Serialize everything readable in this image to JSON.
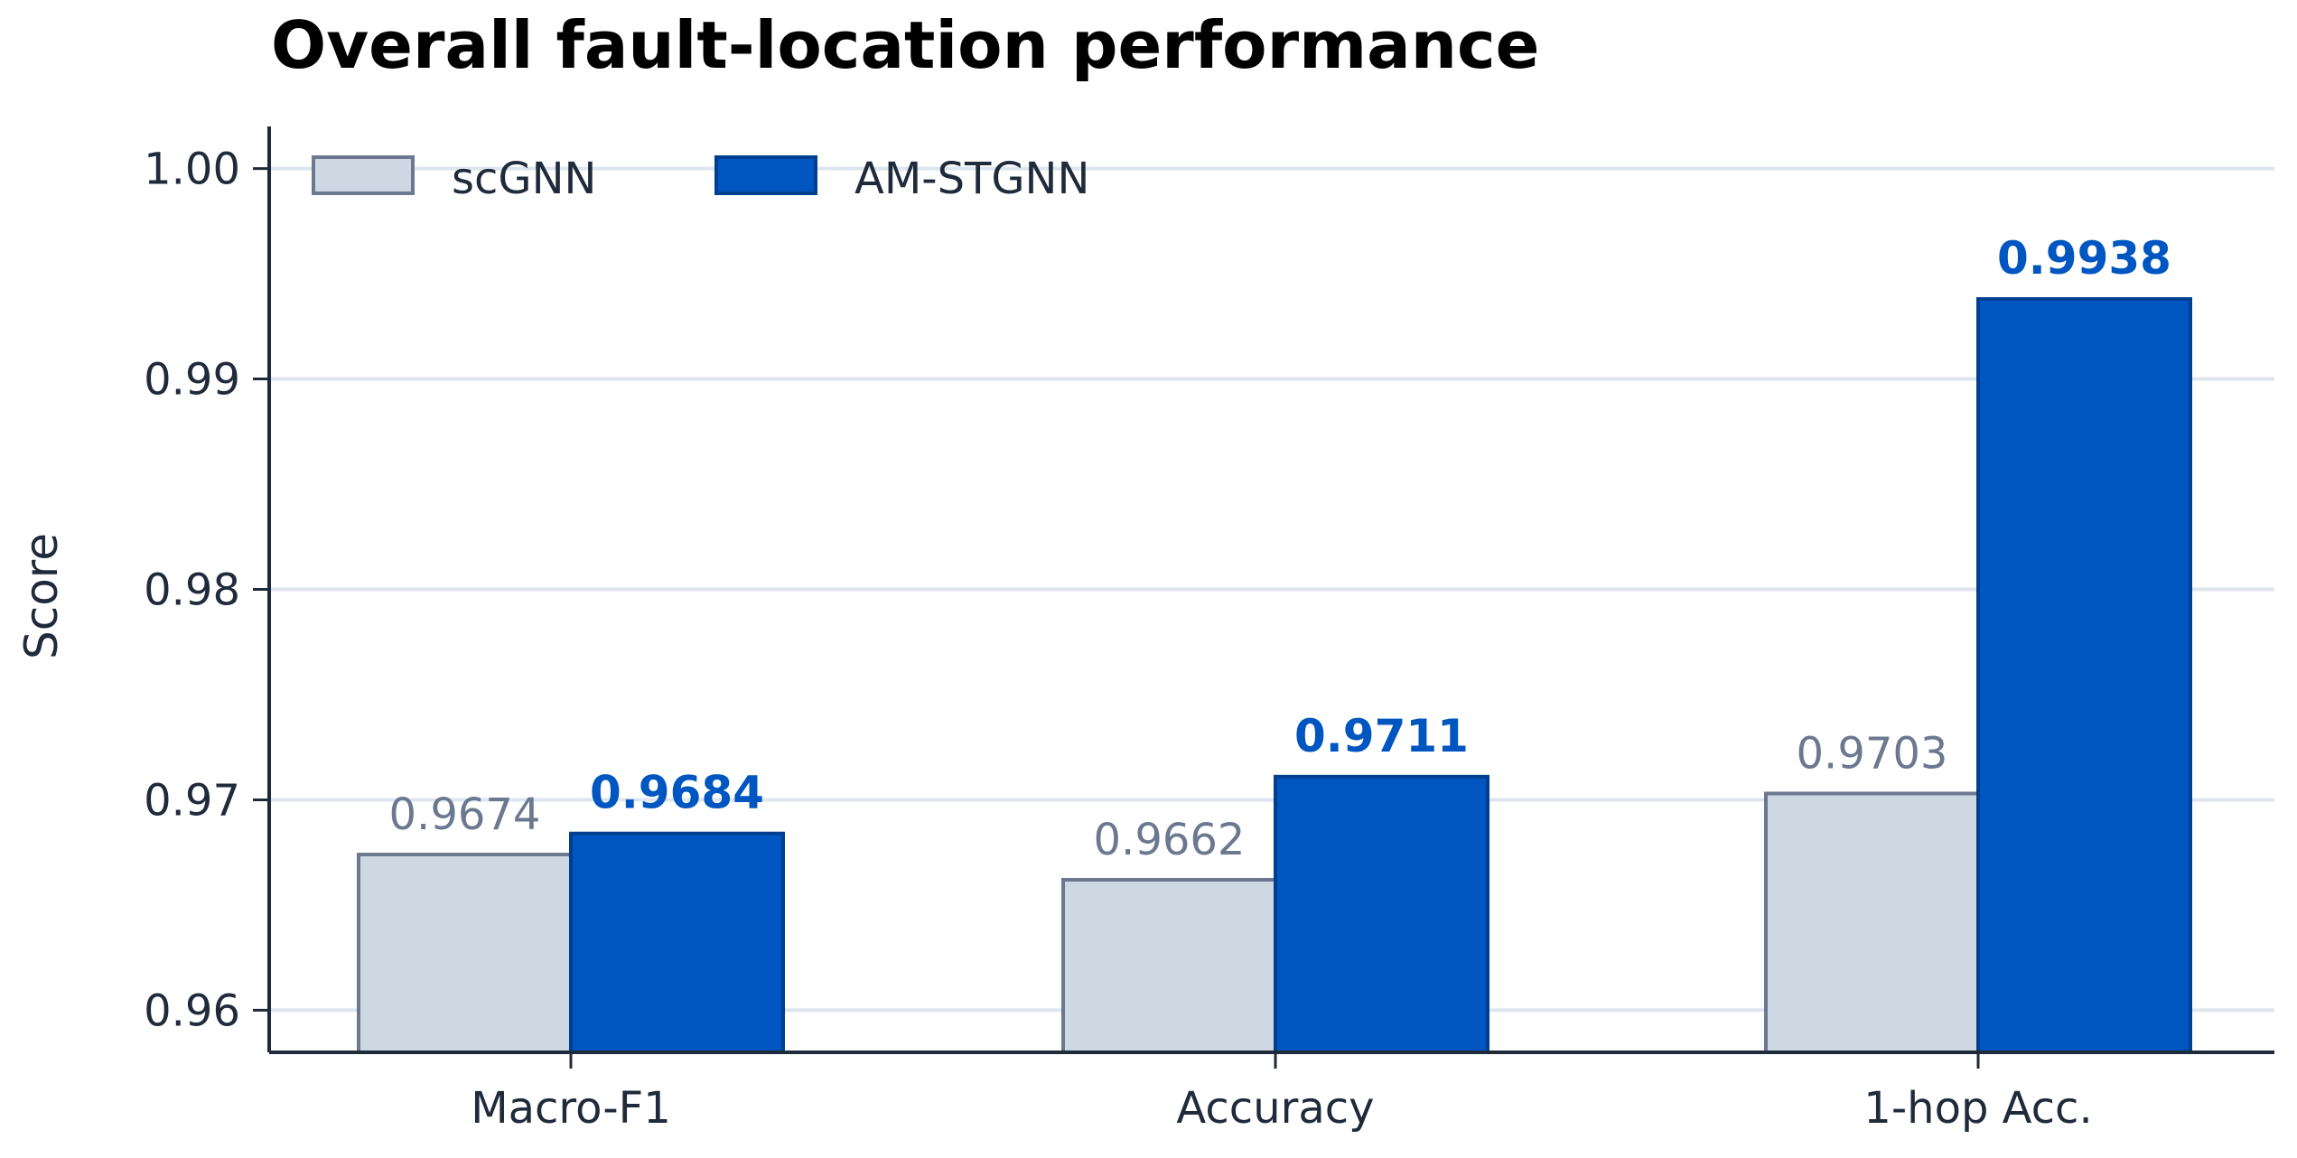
{
  "chart_data": {
    "type": "bar",
    "title": "Overall fault-location performance",
    "xlabel": "",
    "ylabel": "Score",
    "ylim": [
      0.958,
      1.002
    ],
    "yticks": [
      "0.96",
      "0.97",
      "0.98",
      "0.99",
      "1.00"
    ],
    "grid": "horizontal",
    "legend_position": "top-left",
    "categories": [
      "Macro-F1",
      "Accuracy",
      "1-hop Acc."
    ],
    "series": [
      {
        "name": "scGNN",
        "values": [
          0.9674,
          0.9662,
          0.9703
        ],
        "labels": [
          "0.9674",
          "0.9662",
          "0.9703"
        ],
        "color": "#ced8e3",
        "edge_color": "#6b7890",
        "label_color": "#6b7890"
      },
      {
        "name": "AM-STGNN",
        "values": [
          0.9684,
          0.9711,
          0.9938
        ],
        "labels": [
          "0.9684",
          "0.9711",
          "0.9938"
        ],
        "color": "#0056c1",
        "edge_color": "#003f8f",
        "label_color": "#0056c1"
      }
    ],
    "colors": {
      "grid": "#dde5ee",
      "axis": "#1f2a3a"
    }
  }
}
